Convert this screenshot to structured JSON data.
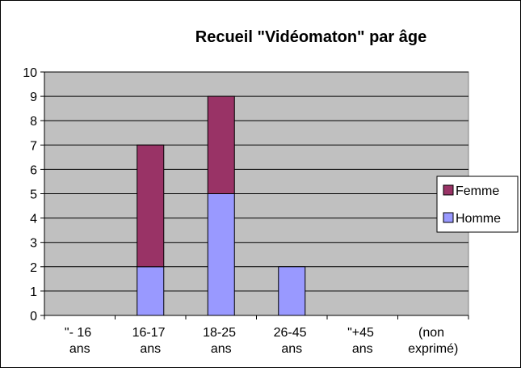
{
  "chart_data": {
    "type": "stacked_bar",
    "title": "Recueil \"Vidéomaton\" par âge",
    "categories": [
      "\"- 16 ans",
      "16-17 ans",
      "18-25 ans",
      "26-45 ans",
      "\"+45 ans",
      "(non exprimé)"
    ],
    "series": [
      {
        "name": "Homme",
        "color": "#9999ff",
        "values": [
          0,
          2,
          5,
          2,
          0,
          0
        ]
      },
      {
        "name": "Femme",
        "color": "#993366",
        "values": [
          0,
          5,
          4,
          0,
          0,
          0
        ]
      }
    ],
    "ylim": [
      0,
      10
    ],
    "yticks": [
      0,
      1,
      2,
      3,
      4,
      5,
      6,
      7,
      8,
      9,
      10
    ],
    "grid": true,
    "legend": "right",
    "plot_color": "#c0c0c0"
  }
}
